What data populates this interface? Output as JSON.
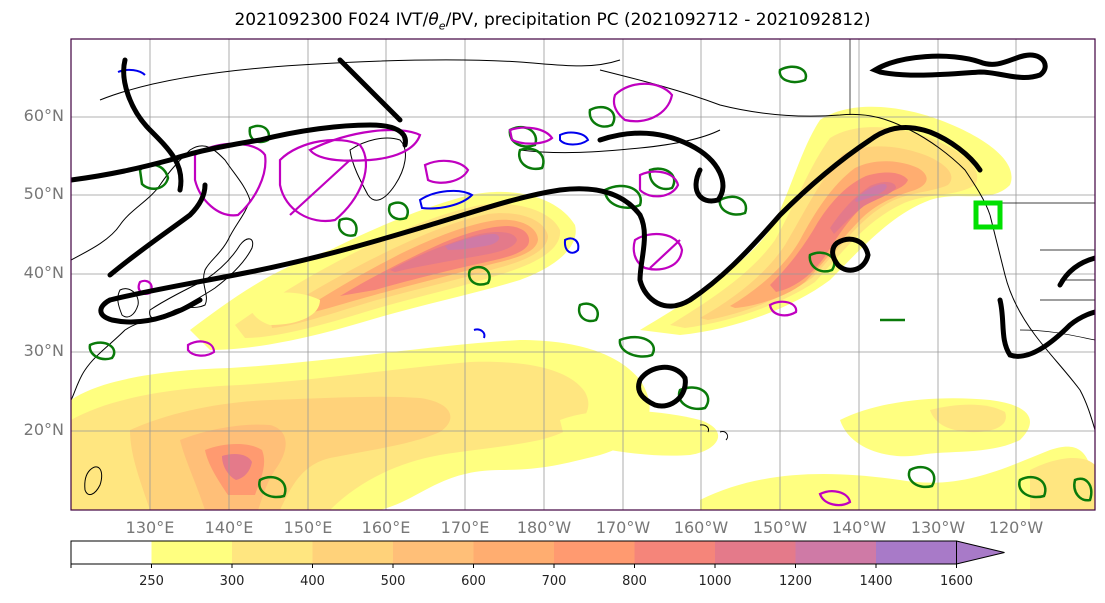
{
  "title": "2021092300 F024 IVT/θe/PV, precipitation PC (2021092712 - 2021092812)",
  "title_parts": {
    "prefix": "2021092300 F024 IVT/",
    "theta": "θ",
    "theta_sub": "e",
    "suffix": "/PV, precipitation PC (2021092712 - 2021092812)"
  },
  "map": {
    "lat_labels": [
      "60°N",
      "50°N",
      "40°N",
      "30°N",
      "20°N"
    ],
    "lon_labels": [
      "130°E",
      "140°E",
      "150°E",
      "160°E",
      "170°E",
      "180°W",
      "170°W",
      "160°W",
      "150°W",
      "140°W",
      "130°W",
      "120°W"
    ],
    "lat_range": [
      10,
      70
    ],
    "lon_range_east": [
      120,
      250
    ],
    "gridlines": true,
    "colors": {
      "ivt_fill": [
        "#ffffff",
        "#ffff80",
        "#ffe680",
        "#ffd27a",
        "#ffbf78",
        "#ffad70",
        "#ff9a70",
        "#f5857a",
        "#e47a8a",
        "#cf7aa6",
        "#a87ac8"
      ],
      "theta_e_contour": "#000000",
      "precip_contour": "#008000",
      "pv_contour": "#c000c0",
      "pv_negative_contour": "#0000ff",
      "marker": "#00ff00"
    }
  },
  "colorbar": {
    "levels": [
      250,
      300,
      400,
      500,
      600,
      700,
      800,
      1000,
      1200,
      1400,
      1600
    ],
    "labels": [
      "250",
      "300",
      "400",
      "500",
      "600",
      "700",
      "800",
      "1000",
      "1200",
      "1400",
      "1600"
    ],
    "colors": [
      "#ffffff",
      "#ffff80",
      "#ffe680",
      "#ffd27a",
      "#ffbf78",
      "#ffad70",
      "#ff9a70",
      "#f5857a",
      "#e47a8a",
      "#cf7aa6",
      "#a87ac8",
      "#a87ac8"
    ],
    "extend": "max"
  }
}
